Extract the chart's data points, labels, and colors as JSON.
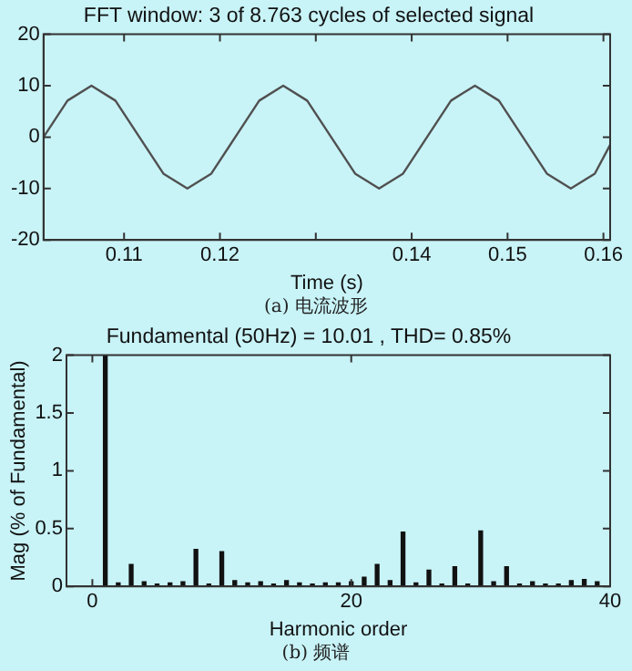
{
  "chart_data": [
    {
      "type": "line",
      "title": "FFT window: 3 of 8.763 cycles of selected signal",
      "xlabel": "Time (s)",
      "annotations": [
        "(a) 电流波形"
      ],
      "x": [
        0.1016,
        0.1041,
        0.1066,
        0.1091,
        0.1116,
        0.1141,
        0.1166,
        0.1191,
        0.1216,
        0.1241,
        0.1266,
        0.1291,
        0.1316,
        0.1341,
        0.1366,
        0.1391,
        0.1416,
        0.1441,
        0.1466,
        0.1491,
        0.1516,
        0.1541,
        0.1566,
        0.1591,
        0.1607
      ],
      "series": [
        {
          "color": "#505050",
          "values": [
            0,
            7.1,
            10,
            7.1,
            0,
            -7.1,
            -10,
            -7.1,
            0,
            7.1,
            10,
            7.1,
            0,
            -7.1,
            -10,
            -7.1,
            0,
            7.1,
            10,
            7.1,
            0,
            -7.1,
            -10,
            -7.1,
            -1.5
          ]
        }
      ],
      "xlim": [
        0.1016,
        0.1607
      ],
      "xticks": [
        0.11,
        0.12,
        {
          "value": 0.13,
          "label": null
        },
        0.14,
        0.15,
        0.16
      ],
      "ylim": [
        -20,
        20
      ],
      "yticks": [
        -20,
        -10,
        0,
        10,
        20
      ],
      "grid": false,
      "legend": false,
      "line_style": "solid",
      "marker": "none"
    },
    {
      "type": "bar",
      "title": "Fundamental (50Hz) = 10.01 , THD= 0.85%",
      "xlabel": "Harmonic order",
      "ylabel": "Mag (% of Fundamental)",
      "annotations": [
        "(b) 频谱"
      ],
      "x": [
        1,
        2,
        3,
        4,
        5,
        6,
        7,
        8,
        9,
        10,
        11,
        12,
        13,
        14,
        15,
        16,
        17,
        18,
        19,
        20,
        21,
        22,
        23,
        24,
        25,
        26,
        27,
        28,
        29,
        30,
        31,
        32,
        33,
        34,
        35,
        36,
        37,
        38,
        39
      ],
      "series": [
        {
          "color": "#111111",
          "values": [
            2,
            0.03,
            0.19,
            0.04,
            0.02,
            0.03,
            0.04,
            0.32,
            0.02,
            0.3,
            0.05,
            0.03,
            0.04,
            0.02,
            0.05,
            0.03,
            0.02,
            0.03,
            0.03,
            0.04,
            0.08,
            0.19,
            0.05,
            0.47,
            0.03,
            0.14,
            0.02,
            0.17,
            0.02,
            0.48,
            0.04,
            0.17,
            0.02,
            0.04,
            0.02,
            0.02,
            0.05,
            0.06,
            0.04
          ]
        }
      ],
      "xlim": [
        -2,
        40
      ],
      "xticks": [
        0,
        20,
        40
      ],
      "ylim": [
        0,
        2
      ],
      "yticks": [
        0,
        0.5,
        1,
        1.5,
        2
      ],
      "grid": false,
      "legend": false
    }
  ]
}
